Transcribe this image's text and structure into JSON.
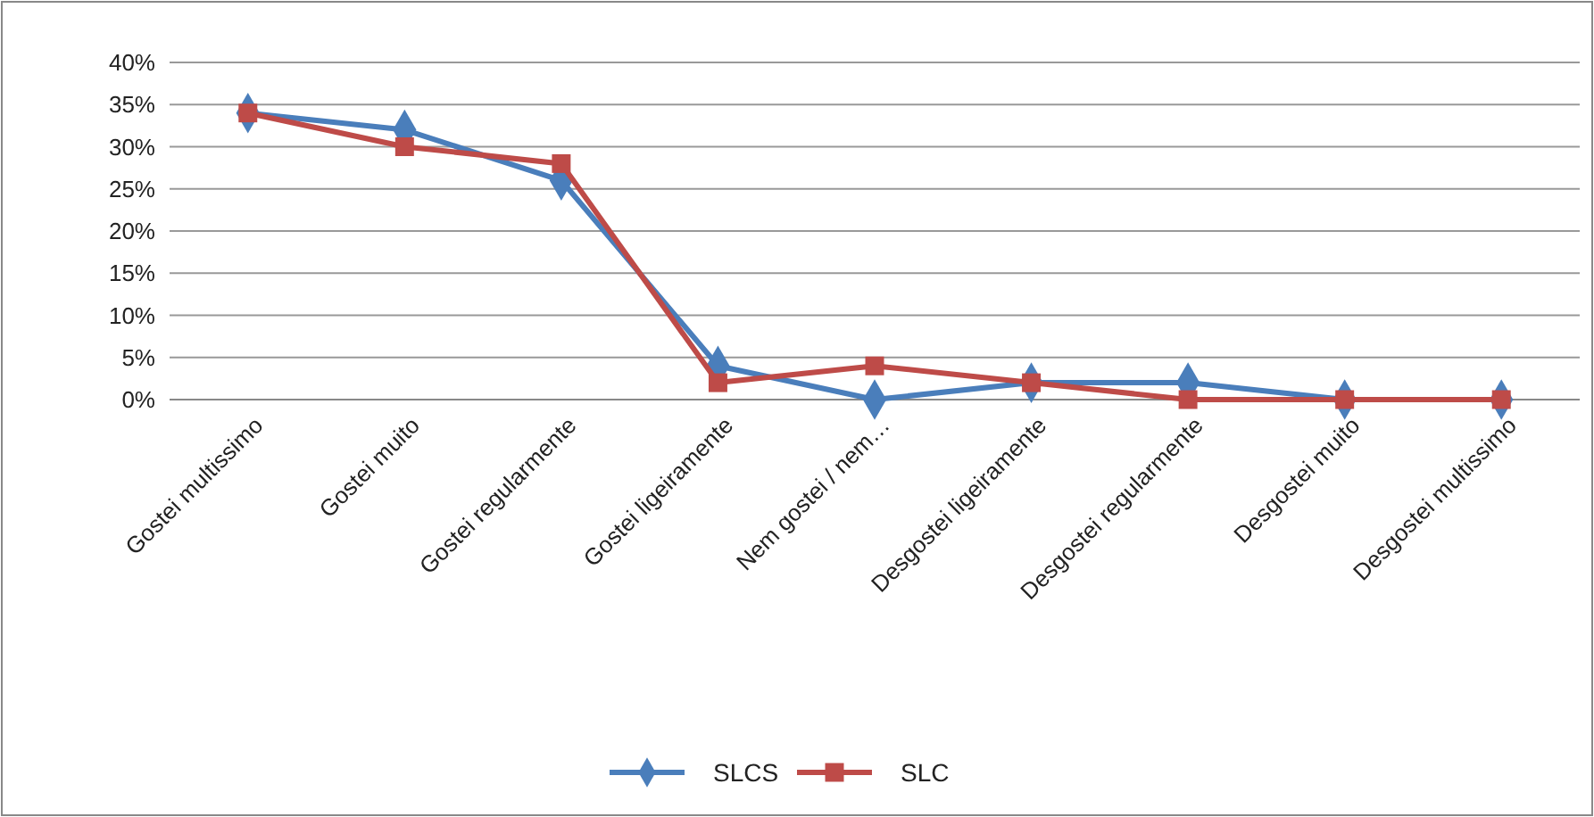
{
  "chart_data": {
    "type": "line",
    "categories": [
      "Gostei multissimo",
      "Gostei muito",
      "Gostei regularmente",
      "Gostei ligeiramente",
      "Nem gostei / nem…",
      "Desgostei ligeiramente",
      "Desgostei regularmente",
      "Desgostei muito",
      "Desgostei multissimo"
    ],
    "series": [
      {
        "name": "SLCS",
        "color": "#4a7ebb",
        "marker": "diamond",
        "values": [
          34,
          32,
          26,
          4,
          0,
          2,
          2,
          0,
          0
        ]
      },
      {
        "name": "SLC",
        "color": "#be4b48",
        "marker": "square",
        "values": [
          34,
          30,
          28,
          2,
          4,
          2,
          0,
          0,
          0
        ]
      }
    ],
    "ylim": [
      0,
      40
    ],
    "yticks": [
      {
        "value": 0,
        "label": "0%"
      },
      {
        "value": 5,
        "label": "5%"
      },
      {
        "value": 10,
        "label": "10%"
      },
      {
        "value": 15,
        "label": "15%"
      },
      {
        "value": 20,
        "label": "20%"
      },
      {
        "value": 25,
        "label": "25%"
      },
      {
        "value": 30,
        "label": "30%"
      },
      {
        "value": 35,
        "label": "35%"
      },
      {
        "value": 40,
        "label": "40%"
      }
    ],
    "grid": "y",
    "legend": "bottom"
  }
}
